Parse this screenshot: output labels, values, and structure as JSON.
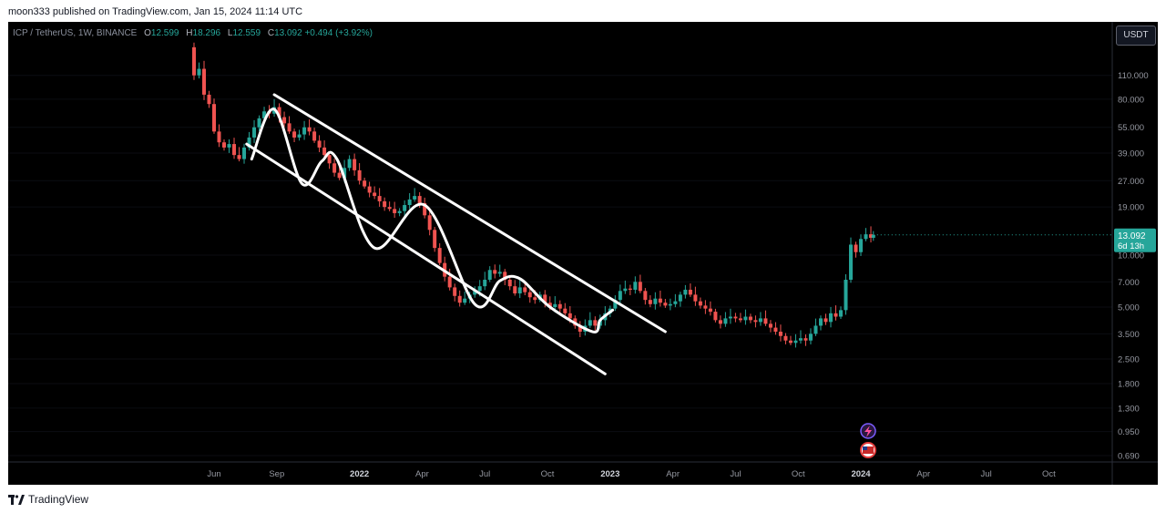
{
  "header": {
    "publisher": "moon333 published on TradingView.com, Jan 15, 2024 11:14 UTC"
  },
  "legend": {
    "symbol": "ICP / TetherUS, 1W, BINANCE",
    "o_key": "O",
    "o_val": "12.599",
    "h_key": "H",
    "h_val": "18.296",
    "l_key": "L",
    "l_val": "12.559",
    "c_key": "C",
    "c_val": "13.092",
    "change": "+0.494 (+3.92%)"
  },
  "currency_button": "USDT",
  "price_tag": {
    "price": "13.092",
    "countdown": "6d 13h"
  },
  "footer": {
    "brand": "TradingView"
  },
  "colors": {
    "up": "#26a69a",
    "down": "#ef5350",
    "background": "#000000",
    "drawing": "#ffffff"
  },
  "chart_data": {
    "type": "candlestick",
    "symbol": "ICP / TetherUS",
    "interval": "1W",
    "scale": "log",
    "y_ticks": [
      "110.000",
      "80.000",
      "55.000",
      "39.000",
      "27.000",
      "19.000",
      "10.000",
      "7.000",
      "5.000",
      "3.500",
      "2.500",
      "1.800",
      "1.300",
      "0.950",
      "0.690"
    ],
    "x_ticks": [
      {
        "label": "Jun",
        "t": 2021.42,
        "bold": false
      },
      {
        "label": "Sep",
        "t": 2021.67,
        "bold": false
      },
      {
        "label": "2022",
        "t": 2022.0,
        "bold": true
      },
      {
        "label": "Apr",
        "t": 2022.25,
        "bold": false
      },
      {
        "label": "Jul",
        "t": 2022.5,
        "bold": false
      },
      {
        "label": "Oct",
        "t": 2022.75,
        "bold": false
      },
      {
        "label": "2023",
        "t": 2023.0,
        "bold": true
      },
      {
        "label": "Apr",
        "t": 2023.25,
        "bold": false
      },
      {
        "label": "Jul",
        "t": 2023.5,
        "bold": false
      },
      {
        "label": "Oct",
        "t": 2023.75,
        "bold": false
      },
      {
        "label": "2024",
        "t": 2024.0,
        "bold": true
      },
      {
        "label": "Apr",
        "t": 2024.25,
        "bold": false
      },
      {
        "label": "Jul",
        "t": 2024.5,
        "bold": false
      },
      {
        "label": "Oct",
        "t": 2024.75,
        "bold": false
      }
    ],
    "weekly_closes": [
      {
        "t": 2021.32,
        "c": 160
      },
      {
        "t": 2021.34,
        "c": 110
      },
      {
        "t": 2021.36,
        "c": 120
      },
      {
        "t": 2021.38,
        "c": 85
      },
      {
        "t": 2021.4,
        "c": 75
      },
      {
        "t": 2021.42,
        "c": 52
      },
      {
        "t": 2021.44,
        "c": 45
      },
      {
        "t": 2021.46,
        "c": 42
      },
      {
        "t": 2021.48,
        "c": 44
      },
      {
        "t": 2021.5,
        "c": 38
      },
      {
        "t": 2021.52,
        "c": 36
      },
      {
        "t": 2021.54,
        "c": 42
      },
      {
        "t": 2021.56,
        "c": 48
      },
      {
        "t": 2021.58,
        "c": 55
      },
      {
        "t": 2021.6,
        "c": 62
      },
      {
        "t": 2021.62,
        "c": 68
      },
      {
        "t": 2021.64,
        "c": 66
      },
      {
        "t": 2021.66,
        "c": 72
      },
      {
        "t": 2021.68,
        "c": 63
      },
      {
        "t": 2021.7,
        "c": 58
      },
      {
        "t": 2021.72,
        "c": 52
      },
      {
        "t": 2021.74,
        "c": 48
      },
      {
        "t": 2021.76,
        "c": 50
      },
      {
        "t": 2021.78,
        "c": 55
      },
      {
        "t": 2021.8,
        "c": 52
      },
      {
        "t": 2021.82,
        "c": 46
      },
      {
        "t": 2021.84,
        "c": 42
      },
      {
        "t": 2021.86,
        "c": 38
      },
      {
        "t": 2021.88,
        "c": 34
      },
      {
        "t": 2021.9,
        "c": 30
      },
      {
        "t": 2021.92,
        "c": 28
      },
      {
        "t": 2021.94,
        "c": 32
      },
      {
        "t": 2021.96,
        "c": 36
      },
      {
        "t": 2021.98,
        "c": 31
      },
      {
        "t": 2022.0,
        "c": 27
      },
      {
        "t": 2022.02,
        "c": 25
      },
      {
        "t": 2022.04,
        "c": 23
      },
      {
        "t": 2022.06,
        "c": 22
      },
      {
        "t": 2022.08,
        "c": 20.5
      },
      {
        "t": 2022.1,
        "c": 19
      },
      {
        "t": 2022.12,
        "c": 18.5
      },
      {
        "t": 2022.14,
        "c": 17.5
      },
      {
        "t": 2022.16,
        "c": 18
      },
      {
        "t": 2022.18,
        "c": 19.5
      },
      {
        "t": 2022.2,
        "c": 21
      },
      {
        "t": 2022.22,
        "c": 22
      },
      {
        "t": 2022.24,
        "c": 20
      },
      {
        "t": 2022.26,
        "c": 17
      },
      {
        "t": 2022.28,
        "c": 14
      },
      {
        "t": 2022.3,
        "c": 11
      },
      {
        "t": 2022.32,
        "c": 9
      },
      {
        "t": 2022.34,
        "c": 7.5
      },
      {
        "t": 2022.36,
        "c": 6.5
      },
      {
        "t": 2022.38,
        "c": 5.8
      },
      {
        "t": 2022.4,
        "c": 5.3
      },
      {
        "t": 2022.42,
        "c": 5.6
      },
      {
        "t": 2022.44,
        "c": 5.9
      },
      {
        "t": 2022.46,
        "c": 6.2
      },
      {
        "t": 2022.48,
        "c": 6.6
      },
      {
        "t": 2022.5,
        "c": 7.2
      },
      {
        "t": 2022.52,
        "c": 8.2
      },
      {
        "t": 2022.54,
        "c": 7.8
      },
      {
        "t": 2022.56,
        "c": 8.0
      },
      {
        "t": 2022.58,
        "c": 7.2
      },
      {
        "t": 2022.6,
        "c": 6.6
      },
      {
        "t": 2022.62,
        "c": 6.0
      },
      {
        "t": 2022.64,
        "c": 6.5
      },
      {
        "t": 2022.66,
        "c": 6.1
      },
      {
        "t": 2022.68,
        "c": 5.7
      },
      {
        "t": 2022.7,
        "c": 5.5
      },
      {
        "t": 2022.72,
        "c": 5.9
      },
      {
        "t": 2022.74,
        "c": 5.3
      },
      {
        "t": 2022.76,
        "c": 5.0
      },
      {
        "t": 2022.78,
        "c": 5.2
      },
      {
        "t": 2022.8,
        "c": 4.9
      },
      {
        "t": 2022.82,
        "c": 4.6
      },
      {
        "t": 2022.84,
        "c": 4.3
      },
      {
        "t": 2022.86,
        "c": 3.9
      },
      {
        "t": 2022.88,
        "c": 3.6
      },
      {
        "t": 2022.9,
        "c": 3.9
      },
      {
        "t": 2022.92,
        "c": 4.2
      },
      {
        "t": 2022.94,
        "c": 3.9
      },
      {
        "t": 2022.96,
        "c": 4.2
      },
      {
        "t": 2022.98,
        "c": 4.6
      },
      {
        "t": 2023.0,
        "c": 4.9
      },
      {
        "t": 2023.02,
        "c": 5.5
      },
      {
        "t": 2023.04,
        "c": 6.2
      },
      {
        "t": 2023.06,
        "c": 6.4
      },
      {
        "t": 2023.08,
        "c": 6.3
      },
      {
        "t": 2023.1,
        "c": 7.0
      },
      {
        "t": 2023.12,
        "c": 6.2
      },
      {
        "t": 2023.14,
        "c": 5.5
      },
      {
        "t": 2023.16,
        "c": 5.2
      },
      {
        "t": 2023.18,
        "c": 5.6
      },
      {
        "t": 2023.2,
        "c": 5.3
      },
      {
        "t": 2023.22,
        "c": 5.1
      },
      {
        "t": 2023.24,
        "c": 5.2
      },
      {
        "t": 2023.26,
        "c": 5.4
      },
      {
        "t": 2023.28,
        "c": 5.9
      },
      {
        "t": 2023.3,
        "c": 6.3
      },
      {
        "t": 2023.32,
        "c": 5.9
      },
      {
        "t": 2023.34,
        "c": 5.4
      },
      {
        "t": 2023.36,
        "c": 5.1
      },
      {
        "t": 2023.38,
        "c": 4.9
      },
      {
        "t": 2023.4,
        "c": 4.7
      },
      {
        "t": 2023.42,
        "c": 4.2
      },
      {
        "t": 2023.44,
        "c": 4.0
      },
      {
        "t": 2023.46,
        "c": 4.3
      },
      {
        "t": 2023.48,
        "c": 4.4
      },
      {
        "t": 2023.5,
        "c": 4.3
      },
      {
        "t": 2023.52,
        "c": 4.2
      },
      {
        "t": 2023.54,
        "c": 4.4
      },
      {
        "t": 2023.56,
        "c": 4.2
      },
      {
        "t": 2023.58,
        "c": 4.1
      },
      {
        "t": 2023.6,
        "c": 4.3
      },
      {
        "t": 2023.62,
        "c": 4.0
      },
      {
        "t": 2023.64,
        "c": 3.8
      },
      {
        "t": 2023.66,
        "c": 3.6
      },
      {
        "t": 2023.68,
        "c": 3.4
      },
      {
        "t": 2023.7,
        "c": 3.2
      },
      {
        "t": 2023.72,
        "c": 3.1
      },
      {
        "t": 2023.74,
        "c": 3.2
      },
      {
        "t": 2023.76,
        "c": 3.3
      },
      {
        "t": 2023.78,
        "c": 3.2
      },
      {
        "t": 2023.8,
        "c": 3.5
      },
      {
        "t": 2023.82,
        "c": 3.9
      },
      {
        "t": 2023.84,
        "c": 4.3
      },
      {
        "t": 2023.86,
        "c": 4.1
      },
      {
        "t": 2023.88,
        "c": 4.6
      },
      {
        "t": 2023.9,
        "c": 4.4
      },
      {
        "t": 2023.92,
        "c": 4.8
      },
      {
        "t": 2023.94,
        "c": 7.2
      },
      {
        "t": 2023.96,
        "c": 11.5
      },
      {
        "t": 2023.98,
        "c": 10.4
      },
      {
        "t": 2024.0,
        "c": 12.4
      },
      {
        "t": 2024.02,
        "c": 13.2
      },
      {
        "t": 2024.04,
        "c": 12.6
      },
      {
        "t": 2024.05,
        "c": 13.092
      }
    ],
    "drawings": {
      "channel_upper": [
        {
          "t": 2021.66,
          "p": 85
        },
        {
          "t": 2023.22,
          "p": 3.6
        }
      ],
      "channel_lower": [
        {
          "t": 2021.55,
          "p": 44
        },
        {
          "t": 2022.98,
          "p": 2.05
        }
      ],
      "wave": [
        {
          "t": 2021.57,
          "p": 36
        },
        {
          "t": 2021.66,
          "p": 70
        },
        {
          "t": 2021.77,
          "p": 26
        },
        {
          "t": 2021.85,
          "p": 35
        },
        {
          "t": 2021.91,
          "p": 36
        },
        {
          "t": 2022.06,
          "p": 11
        },
        {
          "t": 2022.26,
          "p": 19.5
        },
        {
          "t": 2022.46,
          "p": 5.2
        },
        {
          "t": 2022.56,
          "p": 7.1
        },
        {
          "t": 2022.64,
          "p": 7.3
        },
        {
          "t": 2022.76,
          "p": 5.0
        },
        {
          "t": 2022.93,
          "p": 3.6
        },
        {
          "t": 2022.96,
          "p": 4.2
        },
        {
          "t": 2023.01,
          "p": 4.8
        }
      ]
    }
  }
}
